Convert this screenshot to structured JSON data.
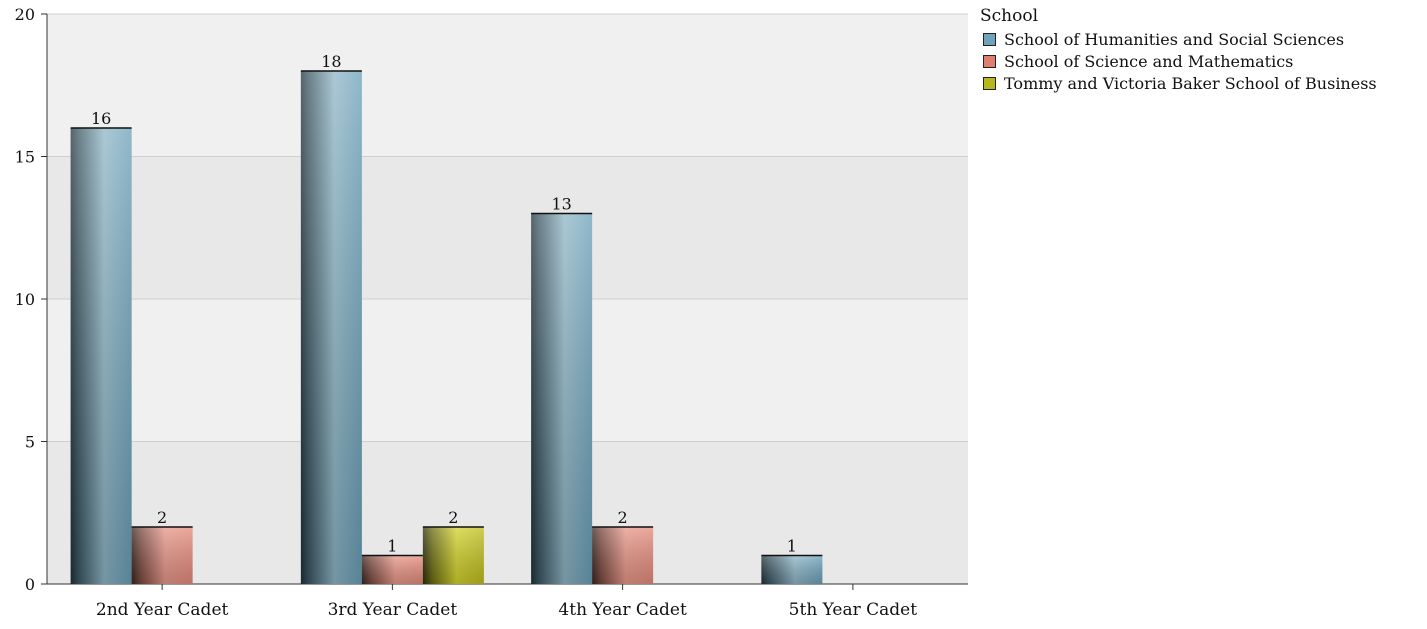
{
  "chart_data": {
    "type": "bar",
    "categories": [
      "2nd Year Cadet",
      "3rd Year Cadet",
      "4th Year Cadet",
      "5th Year Cadet"
    ],
    "series": [
      {
        "name": "School of Humanities and Social Sciences",
        "values": [
          16,
          18,
          13,
          1
        ],
        "color": "#4a90ad"
      },
      {
        "name": "School of Science and Mathematics",
        "values": [
          2,
          1,
          2,
          null
        ],
        "color": "#e8917e"
      },
      {
        "name": "Tommy and Victoria Baker School of Business",
        "values": [
          null,
          2,
          null,
          null
        ],
        "color": "#c6c62a"
      }
    ],
    "ylim": [
      0,
      20
    ],
    "yticks": [
      0,
      5,
      10,
      15,
      20
    ],
    "xlabel": "",
    "ylabel": "",
    "grid": true,
    "legend_title": "School",
    "legend_position": "top-right"
  }
}
